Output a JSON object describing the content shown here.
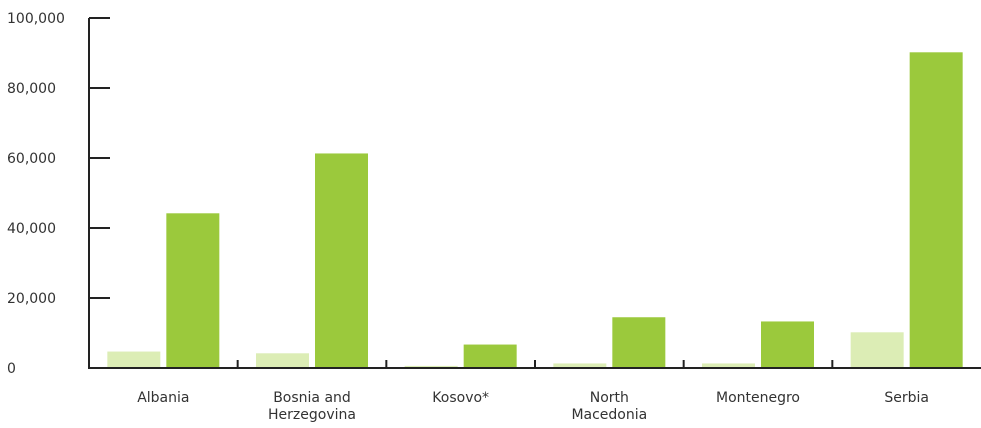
{
  "chart_data": {
    "type": "bar",
    "title": "",
    "xlabel": "",
    "ylabel": "",
    "ylim": [
      0,
      100000
    ],
    "yticks": [
      "0",
      "20,000",
      "40,000",
      "60,000",
      "80,000",
      "100,000"
    ],
    "ytick_values": [
      0,
      20000,
      40000,
      60000,
      80000,
      100000
    ],
    "grid": false,
    "legend": "none",
    "categories": [
      [
        "Albania"
      ],
      [
        "Bosnia and",
        "Herzegovina"
      ],
      [
        "Kosovo*"
      ],
      [
        "North",
        "Macedonia"
      ],
      [
        "Montenegro"
      ],
      [
        "Serbia"
      ]
    ],
    "series": [
      {
        "color": "#dcedb5",
        "values": [
          4700,
          4200,
          600,
          1300,
          1300,
          10200
        ]
      },
      {
        "color": "#9bc93c",
        "values": [
          44200,
          61300,
          6700,
          14500,
          13300,
          90200
        ]
      }
    ]
  }
}
